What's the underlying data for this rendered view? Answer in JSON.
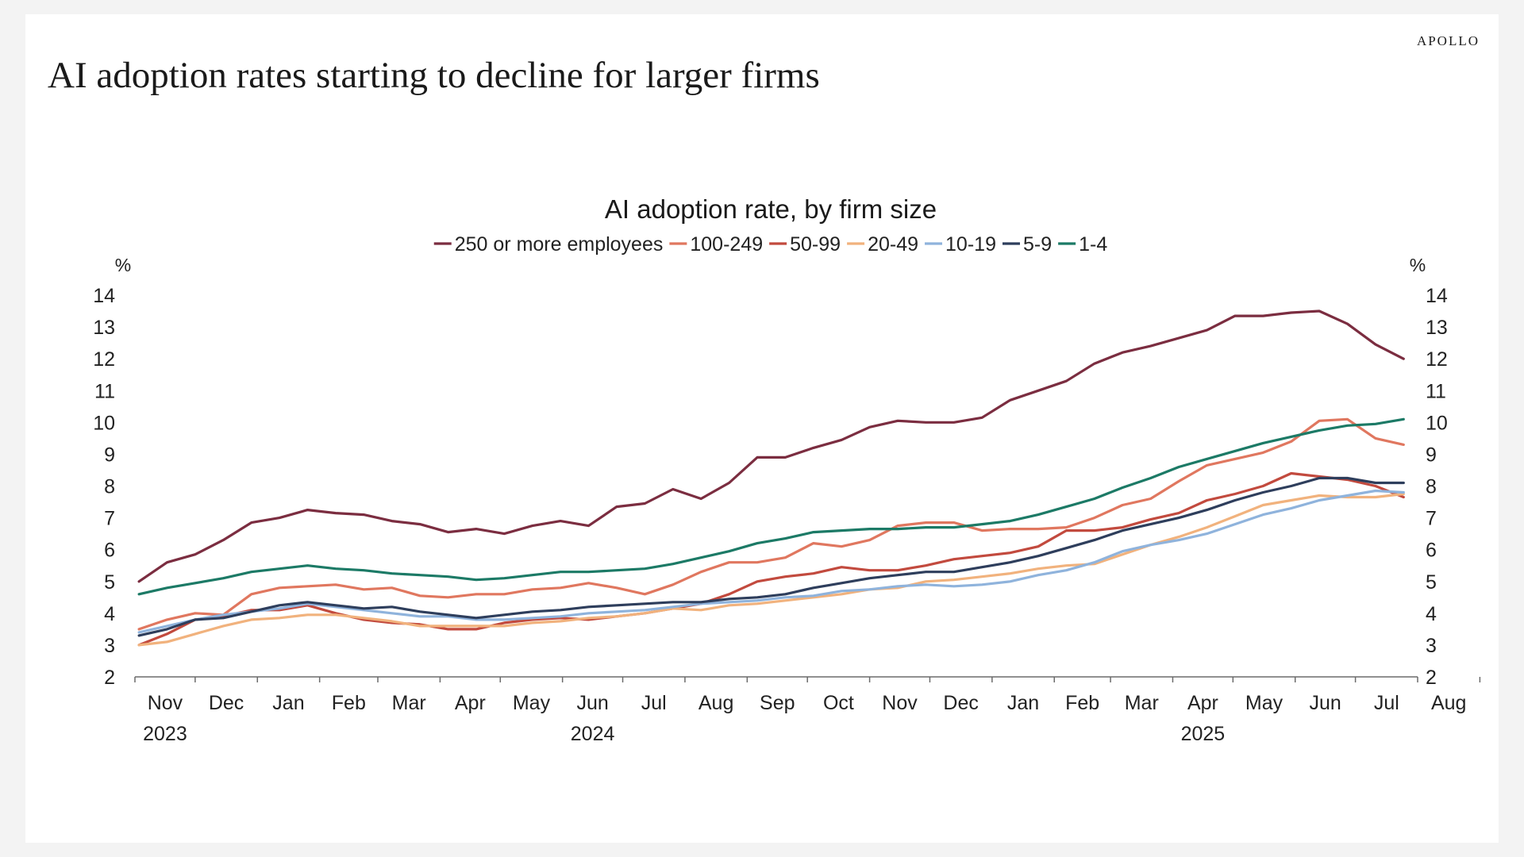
{
  "header": {
    "brand": "APOLLO",
    "headline": "AI adoption rates starting to decline for larger firms"
  },
  "chart_data": {
    "type": "line",
    "title": "AI adoption rate, by firm size",
    "y_unit_left": "%",
    "y_unit_right": "%",
    "ylim": [
      2,
      14
    ],
    "yticks": [
      2,
      3,
      4,
      5,
      6,
      7,
      8,
      9,
      10,
      11,
      12,
      13,
      14
    ],
    "x_start": "2023-11",
    "x_end": "2025-08",
    "x_month_labels": [
      "Nov",
      "Dec",
      "Jan",
      "Feb",
      "Mar",
      "Apr",
      "May",
      "Jun",
      "Jul",
      "Aug",
      "Sep",
      "Oct",
      "Nov",
      "Dec",
      "Jan",
      "Feb",
      "Mar",
      "Apr",
      "May",
      "Jun",
      "Jul",
      "Aug"
    ],
    "x_year_labels": [
      {
        "label": "2023",
        "at": "2023-11"
      },
      {
        "label": "2024",
        "at": "2024-06"
      },
      {
        "label": "2025",
        "at": "2025-04"
      }
    ],
    "x": [
      "2023-11-03",
      "2023-11-17",
      "2023-12-01",
      "2023-12-15",
      "2023-12-29",
      "2024-01-12",
      "2024-01-26",
      "2024-02-09",
      "2024-02-23",
      "2024-03-08",
      "2024-03-22",
      "2024-04-05",
      "2024-04-19",
      "2024-05-03",
      "2024-05-17",
      "2024-05-31",
      "2024-06-14",
      "2024-06-28",
      "2024-07-12",
      "2024-07-26",
      "2024-08-09",
      "2024-08-23",
      "2024-09-06",
      "2024-09-20",
      "2024-10-04",
      "2024-10-18",
      "2024-11-01",
      "2024-11-15",
      "2024-11-29",
      "2024-12-13",
      "2024-12-27",
      "2025-01-10",
      "2025-01-24",
      "2025-02-07",
      "2025-02-21",
      "2025-03-07",
      "2025-03-21",
      "2025-04-04",
      "2025-04-18",
      "2025-05-02",
      "2025-05-16",
      "2025-05-30",
      "2025-06-13",
      "2025-06-27",
      "2025-07-11",
      "2025-07-25"
    ],
    "series": [
      {
        "name": "250 or more employees",
        "color": "#7b2d40",
        "values": [
          5.0,
          5.6,
          5.85,
          6.3,
          6.85,
          7.0,
          7.25,
          7.15,
          7.1,
          6.9,
          6.8,
          6.55,
          6.65,
          6.5,
          6.75,
          6.9,
          6.75,
          7.35,
          7.45,
          7.9,
          7.6,
          8.1,
          8.9,
          8.9,
          9.2,
          9.45,
          9.85,
          10.05,
          10.0,
          10.0,
          10.15,
          10.7,
          11.0,
          11.3,
          11.85,
          12.2,
          12.4,
          12.65,
          12.9,
          13.35,
          13.35,
          13.45,
          13.5,
          13.1,
          12.45,
          12.0
        ]
      },
      {
        "name": "100-249",
        "color": "#e0775f",
        "values": [
          3.5,
          3.8,
          4.0,
          3.95,
          4.6,
          4.8,
          4.85,
          4.9,
          4.75,
          4.8,
          4.55,
          4.5,
          4.6,
          4.6,
          4.75,
          4.8,
          4.95,
          4.8,
          4.6,
          4.9,
          5.3,
          5.6,
          5.6,
          5.75,
          6.2,
          6.1,
          6.3,
          6.75,
          6.85,
          6.85,
          6.6,
          6.65,
          6.65,
          6.7,
          7.0,
          7.4,
          7.6,
          8.15,
          8.65,
          8.85,
          9.05,
          9.4,
          10.05,
          10.1,
          9.5,
          9.3
        ]
      },
      {
        "name": "50-99",
        "color": "#c24a3e",
        "values": [
          3.0,
          3.35,
          3.8,
          3.9,
          4.1,
          4.1,
          4.25,
          4.0,
          3.8,
          3.7,
          3.65,
          3.5,
          3.5,
          3.7,
          3.8,
          3.85,
          3.8,
          3.9,
          4.0,
          4.15,
          4.3,
          4.6,
          5.0,
          5.15,
          5.25,
          5.45,
          5.35,
          5.35,
          5.5,
          5.7,
          5.8,
          5.9,
          6.1,
          6.6,
          6.6,
          6.7,
          6.95,
          7.15,
          7.55,
          7.75,
          8.0,
          8.4,
          8.3,
          8.2,
          8.0,
          7.65
        ]
      },
      {
        "name": "20-49",
        "color": "#f1b27d",
        "values": [
          3.0,
          3.1,
          3.35,
          3.6,
          3.8,
          3.85,
          3.95,
          3.95,
          3.85,
          3.75,
          3.6,
          3.6,
          3.6,
          3.6,
          3.7,
          3.75,
          3.85,
          3.9,
          4.0,
          4.15,
          4.1,
          4.25,
          4.3,
          4.4,
          4.5,
          4.6,
          4.75,
          4.8,
          5.0,
          5.05,
          5.15,
          5.25,
          5.4,
          5.5,
          5.55,
          5.85,
          6.15,
          6.4,
          6.7,
          7.05,
          7.4,
          7.55,
          7.7,
          7.65,
          7.65,
          7.75
        ]
      },
      {
        "name": "10-19",
        "color": "#8fb3dc",
        "values": [
          3.4,
          3.6,
          3.8,
          3.95,
          4.05,
          4.15,
          4.3,
          4.2,
          4.1,
          4.0,
          3.9,
          3.9,
          3.8,
          3.8,
          3.85,
          3.9,
          4.0,
          4.05,
          4.1,
          4.2,
          4.3,
          4.35,
          4.4,
          4.5,
          4.55,
          4.7,
          4.75,
          4.85,
          4.9,
          4.85,
          4.9,
          5.0,
          5.2,
          5.35,
          5.6,
          5.95,
          6.15,
          6.3,
          6.5,
          6.8,
          7.1,
          7.3,
          7.55,
          7.7,
          7.85,
          7.8
        ]
      },
      {
        "name": "5-9",
        "color": "#2e3e5c",
        "values": [
          3.3,
          3.5,
          3.8,
          3.85,
          4.05,
          4.25,
          4.35,
          4.25,
          4.15,
          4.2,
          4.05,
          3.95,
          3.85,
          3.95,
          4.05,
          4.1,
          4.2,
          4.25,
          4.3,
          4.35,
          4.35,
          4.45,
          4.5,
          4.6,
          4.8,
          4.95,
          5.1,
          5.2,
          5.3,
          5.3,
          5.45,
          5.6,
          5.8,
          6.05,
          6.3,
          6.6,
          6.8,
          7.0,
          7.25,
          7.55,
          7.8,
          8.0,
          8.25,
          8.25,
          8.1,
          8.1
        ]
      },
      {
        "name": "1-4",
        "color": "#1c7a66",
        "values": [
          4.6,
          4.8,
          4.95,
          5.1,
          5.3,
          5.4,
          5.5,
          5.4,
          5.35,
          5.25,
          5.2,
          5.15,
          5.05,
          5.1,
          5.2,
          5.3,
          5.3,
          5.35,
          5.4,
          5.55,
          5.75,
          5.95,
          6.2,
          6.35,
          6.55,
          6.6,
          6.65,
          6.65,
          6.7,
          6.7,
          6.8,
          6.9,
          7.1,
          7.35,
          7.6,
          7.95,
          8.25,
          8.6,
          8.85,
          9.1,
          9.35,
          9.55,
          9.75,
          9.9,
          9.95,
          10.1
        ]
      }
    ],
    "grid": false,
    "legend_position": "top-center"
  }
}
